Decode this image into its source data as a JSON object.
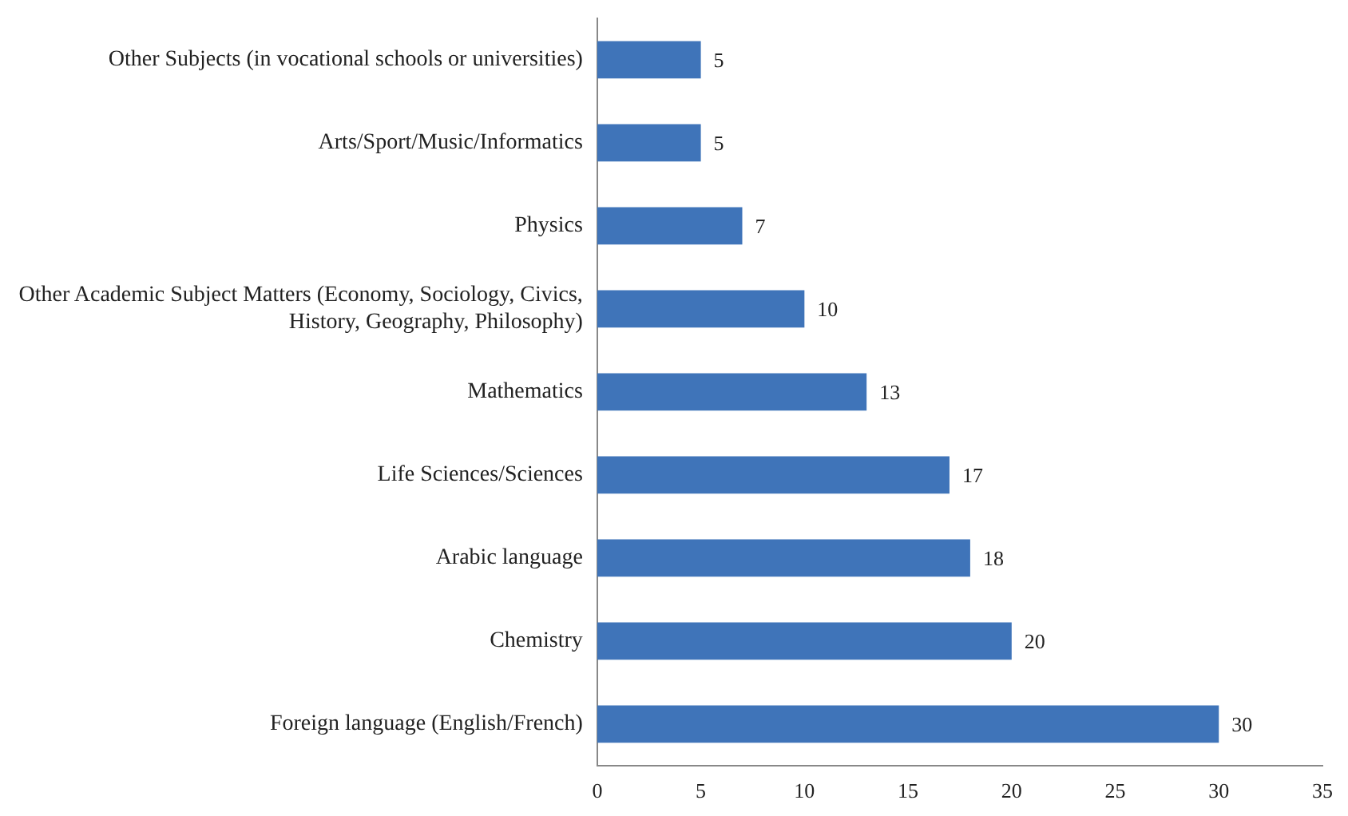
{
  "chart_data": {
    "type": "bar",
    "orientation": "horizontal",
    "categories": [
      "Other Subjects (in vocational schools or universities)",
      "Arts/Sport/Music/Informatics",
      "Physics",
      "Other Academic Subject Matters (Economy, Sociology, Civics, History, Geography, Philosophy)",
      "Mathematics",
      "Life Sciences/Sciences",
      "Arabic language",
      "Chemistry",
      "Foreign language (English/French)"
    ],
    "values": [
      5,
      5,
      7,
      10,
      13,
      17,
      18,
      20,
      30
    ],
    "color": "#3f74b9",
    "xlim": [
      0,
      35
    ],
    "xticks": [
      0,
      5,
      10,
      15,
      20,
      25,
      30,
      35
    ],
    "grid": false,
    "legend": false,
    "data_labels": true
  }
}
